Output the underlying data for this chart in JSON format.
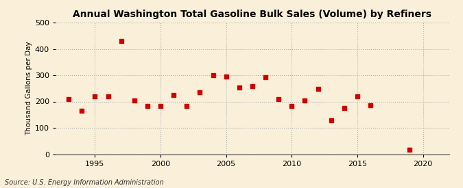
{
  "title": "Annual Washington Total Gasoline Bulk Sales (Volume) by Refiners",
  "ylabel": "Thousand Gallons per Day",
  "source": "Source: U.S. Energy Information Administration",
  "background_color": "#faefd8",
  "marker_color": "#cc0000",
  "grid_color": "#b0b0b0",
  "years": [
    1993,
    1994,
    1995,
    1996,
    1997,
    1998,
    1999,
    2000,
    2001,
    2002,
    2003,
    2004,
    2005,
    2006,
    2007,
    2008,
    2009,
    2010,
    2011,
    2012,
    2013,
    2014,
    2015,
    2016,
    2019
  ],
  "values": [
    210,
    165,
    220,
    220,
    430,
    205,
    183,
    183,
    225,
    183,
    235,
    300,
    295,
    253,
    258,
    293,
    210,
    183,
    205,
    247,
    128,
    175,
    220,
    185,
    18
  ],
  "xlim": [
    1992,
    2022
  ],
  "ylim": [
    0,
    500
  ],
  "xticks": [
    1995,
    2000,
    2005,
    2010,
    2015,
    2020
  ],
  "yticks": [
    0,
    100,
    200,
    300,
    400,
    500
  ],
  "title_fontsize": 10,
  "label_fontsize": 7.5,
  "tick_fontsize": 8,
  "source_fontsize": 7
}
